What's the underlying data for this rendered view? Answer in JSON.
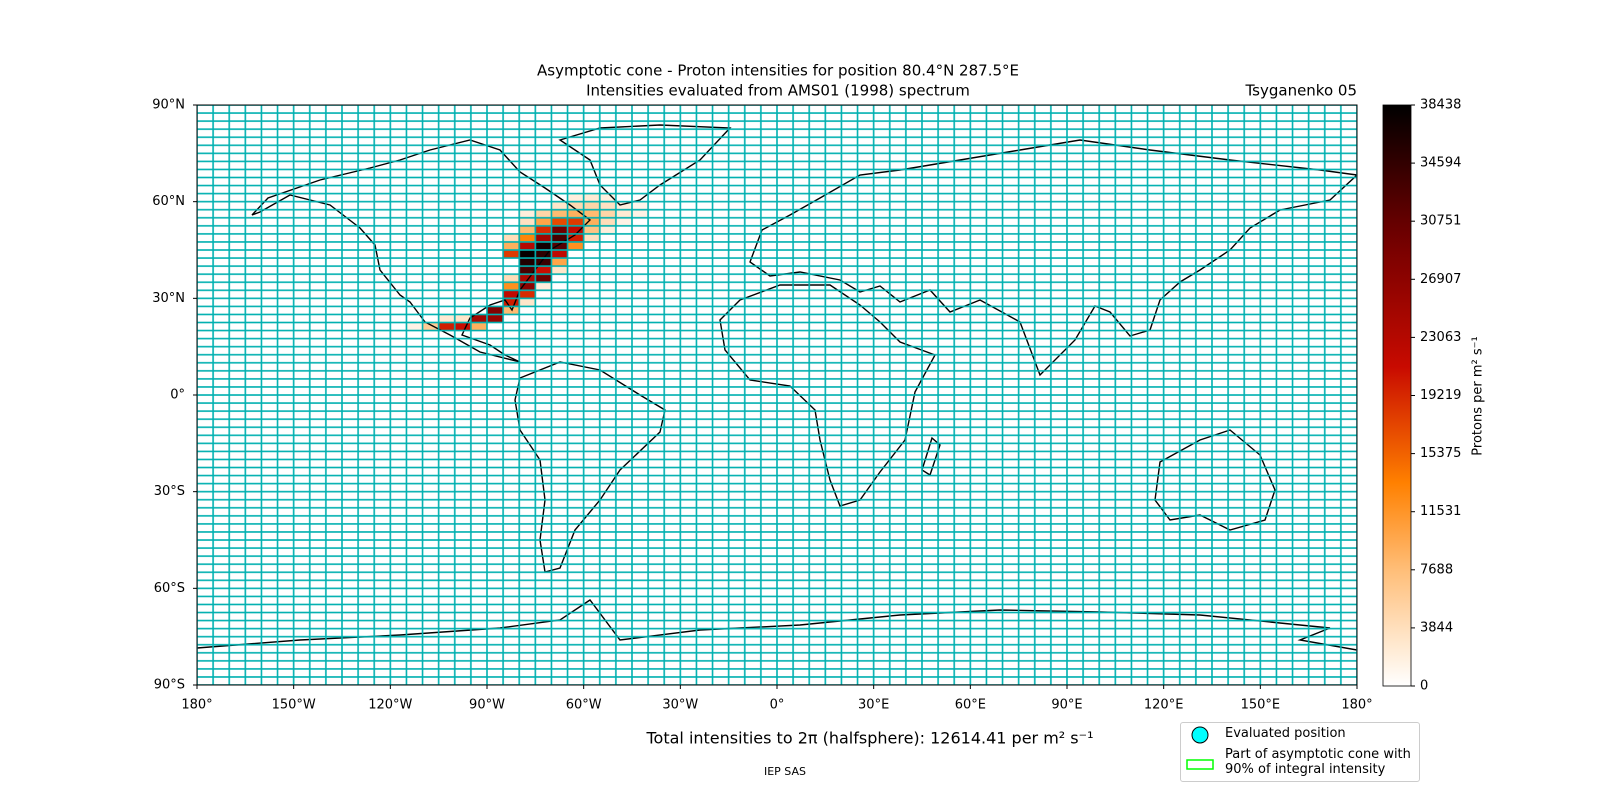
{
  "chart_data": {
    "type": "heatmap",
    "title": "Asymptotic cone - Proton intensities for position 80.4°N 287.5°E",
    "subtitle": "Intensities evaluated from AMS01 (1998) spectrum",
    "model": "Tsyganenko 05",
    "footer": "Total intensities to 2π (halfsphere): 12614.41 per m² s⁻¹",
    "credit": "IEP SAS",
    "xlim": [
      -180,
      180
    ],
    "ylim": [
      -90,
      90
    ],
    "xticks": [
      {
        "value": -180,
        "label": "180°"
      },
      {
        "value": -150,
        "label": "150°W"
      },
      {
        "value": -120,
        "label": "120°W"
      },
      {
        "value": -90,
        "label": "90°W"
      },
      {
        "value": -60,
        "label": "60°W"
      },
      {
        "value": -30,
        "label": "30°W"
      },
      {
        "value": 0,
        "label": "0°"
      },
      {
        "value": 30,
        "label": "30°E"
      },
      {
        "value": 60,
        "label": "60°E"
      },
      {
        "value": 90,
        "label": "90°E"
      },
      {
        "value": 120,
        "label": "120°E"
      },
      {
        "value": 150,
        "label": "150°E"
      },
      {
        "value": 180,
        "label": "180°"
      }
    ],
    "yticks": [
      {
        "value": -90,
        "label": "90°S"
      },
      {
        "value": -60,
        "label": "60°S"
      },
      {
        "value": -30,
        "label": "30°S"
      },
      {
        "value": 0,
        "label": "0°"
      },
      {
        "value": 30,
        "label": "30°N"
      },
      {
        "value": 60,
        "label": "60°N"
      },
      {
        "value": 90,
        "label": "90°N"
      }
    ],
    "colorbar": {
      "label": "Protons per m² s⁻¹",
      "lim": [
        0,
        38438
      ],
      "ticks": [
        0,
        3844,
        7688,
        11531,
        15375,
        19219,
        23063,
        26907,
        30751,
        34594,
        38438
      ]
    },
    "cells": {
      "lon": [
        -115,
        -110,
        -105,
        -100,
        -95,
        -105,
        -100,
        -95,
        -90,
        -90,
        -85,
        -85,
        -80,
        -85,
        -80,
        -85,
        -80,
        -75,
        -85,
        -80,
        -75,
        -80,
        -75,
        -70,
        -80,
        -75,
        -70,
        -85,
        -80,
        -75,
        -70,
        -85,
        -80,
        -75,
        -70,
        -65,
        -85,
        -80,
        -75,
        -70,
        -65,
        -60,
        -80,
        -75,
        -70,
        -65,
        -60,
        -55,
        -80,
        -75,
        -70,
        -65,
        -60,
        -55,
        -50,
        -80,
        -75,
        -70,
        -65,
        -60,
        -55,
        -50,
        -45,
        -70,
        -65,
        -60,
        -55,
        -50,
        -45,
        -65,
        -60,
        -55
      ],
      "lat": [
        20,
        20,
        20,
        20,
        20,
        22.5,
        22.5,
        22.5,
        22.5,
        25,
        25,
        27.5,
        27.5,
        30,
        30,
        32.5,
        32.5,
        32.5,
        35,
        35,
        35,
        37.5,
        37.5,
        37.5,
        40,
        40,
        40,
        42.5,
        42.5,
        42.5,
        42.5,
        45,
        45,
        45,
        45,
        45,
        47.5,
        47.5,
        47.5,
        47.5,
        47.5,
        47.5,
        50,
        50,
        50,
        50,
        50,
        50,
        52.5,
        52.5,
        52.5,
        52.5,
        52.5,
        52.5,
        52.5,
        55,
        55,
        55,
        55,
        55,
        55,
        55,
        55,
        57.5,
        57.5,
        57.5,
        57.5,
        57.5,
        57.5,
        60,
        60,
        60
      ],
      "values": [
        1500,
        6000,
        20000,
        21000,
        9000,
        2500,
        3000,
        25000,
        26000,
        28000,
        8000,
        20000,
        3000,
        22000,
        19000,
        12000,
        27000,
        2000,
        4000,
        24000,
        30000,
        33000,
        21000,
        3000,
        36000,
        34000,
        10000,
        18000,
        38000,
        35000,
        22000,
        9000,
        23000,
        37000,
        32000,
        12000,
        4000,
        13000,
        25000,
        33000,
        20000,
        3500,
        8000,
        19000,
        30000,
        22000,
        7000,
        2000,
        3500,
        10000,
        17000,
        18000,
        9000,
        4000,
        1500,
        2000,
        5000,
        8000,
        9000,
        8000,
        5000,
        2500,
        1500,
        3000,
        4500,
        5000,
        3500,
        2000,
        1200,
        2000,
        2500,
        1800
      ]
    },
    "legend": [
      {
        "label": "Evaluated position",
        "color": "#00ffff"
      },
      {
        "label": "Part of asymptotic cone with 90% of integral intensity",
        "color": "#00ff00"
      }
    ]
  }
}
